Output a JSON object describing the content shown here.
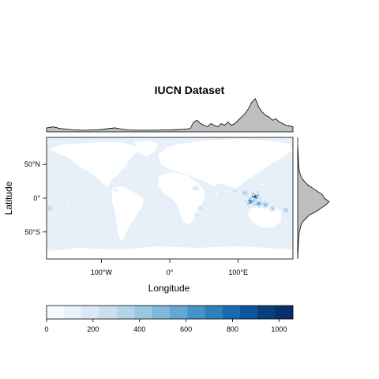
{
  "chart_data": {
    "type": "heatmap",
    "title": "IUCN Dataset",
    "xlabel": "Longitude",
    "ylabel": "Latitude",
    "xlim": [
      -180,
      180
    ],
    "ylim": [
      -90,
      90
    ],
    "x_ticks": [
      {
        "value": -100,
        "label": "100°W"
      },
      {
        "value": 0,
        "label": "0°"
      },
      {
        "value": 100,
        "label": "100°E"
      }
    ],
    "y_ticks": [
      {
        "value": 50,
        "label": "50°N"
      },
      {
        "value": 0,
        "label": "0°"
      },
      {
        "value": -50,
        "label": "50°S"
      }
    ],
    "colorbar": {
      "min": 0,
      "max": 1060,
      "tick_values": [
        0,
        200,
        400,
        600,
        800,
        1000
      ],
      "tick_labels": [
        "0",
        "200",
        "400",
        "600",
        "800",
        "1000"
      ],
      "colors": [
        "#f7fbff",
        "#e9f2fb",
        "#dbe9f6",
        "#cadef0",
        "#b5d4e9",
        "#9ac8e1",
        "#7fb9da",
        "#62a8d3",
        "#4594c7",
        "#2e80bc",
        "#1b6aaf",
        "#0c549b",
        "#083f7d",
        "#08306b"
      ]
    },
    "ocean_fill": "#e7f0f9",
    "land_fill": "#ffffff",
    "hotspots": [
      {
        "lon": 125,
        "lat": 2,
        "value": 1000
      },
      {
        "lon": 118,
        "lat": -5,
        "value": 850
      },
      {
        "lon": 130,
        "lat": -8,
        "value": 750
      },
      {
        "lon": 140,
        "lat": -10,
        "value": 600
      },
      {
        "lon": 150,
        "lat": -15,
        "value": 500
      },
      {
        "lon": 110,
        "lat": 8,
        "value": 500
      },
      {
        "lon": 95,
        "lat": 10,
        "value": 350
      },
      {
        "lon": 75,
        "lat": 5,
        "value": 300
      },
      {
        "lon": 45,
        "lat": -15,
        "value": 350
      },
      {
        "lon": 40,
        "lat": -25,
        "value": 300
      },
      {
        "lon": 38,
        "lat": 15,
        "value": 300
      },
      {
        "lon": 170,
        "lat": -18,
        "value": 500
      },
      {
        "lon": -175,
        "lat": -15,
        "value": 450
      },
      {
        "lon": -155,
        "lat": -10,
        "value": 300
      },
      {
        "lon": -80,
        "lat": 12,
        "value": 200
      },
      {
        "lon": 135,
        "lat": 25,
        "value": 250
      }
    ],
    "lon_profile": {
      "lon": [
        -180,
        -170,
        -160,
        -150,
        -140,
        -130,
        -120,
        -110,
        -100,
        -90,
        -80,
        -70,
        -60,
        -50,
        -40,
        -30,
        -20,
        -10,
        0,
        10,
        20,
        30,
        35,
        40,
        45,
        50,
        55,
        60,
        65,
        70,
        75,
        80,
        85,
        90,
        95,
        100,
        105,
        110,
        115,
        120,
        125,
        130,
        135,
        140,
        145,
        150,
        155,
        160,
        165,
        170,
        175,
        180
      ],
      "density": [
        0.12,
        0.15,
        0.1,
        0.08,
        0.06,
        0.05,
        0.05,
        0.06,
        0.07,
        0.1,
        0.12,
        0.08,
        0.06,
        0.05,
        0.05,
        0.05,
        0.05,
        0.06,
        0.06,
        0.07,
        0.08,
        0.1,
        0.3,
        0.35,
        0.25,
        0.2,
        0.15,
        0.25,
        0.2,
        0.15,
        0.25,
        0.2,
        0.3,
        0.2,
        0.25,
        0.35,
        0.45,
        0.55,
        0.7,
        0.9,
        1.0,
        0.75,
        0.6,
        0.5,
        0.45,
        0.35,
        0.4,
        0.3,
        0.25,
        0.2,
        0.18,
        0.15
      ]
    },
    "lat_profile": {
      "lat": [
        -90,
        -80,
        -70,
        -60,
        -50,
        -40,
        -35,
        -30,
        -25,
        -20,
        -15,
        -10,
        -5,
        0,
        5,
        10,
        15,
        20,
        25,
        30,
        35,
        40,
        50,
        60,
        70,
        80,
        90
      ],
      "density": [
        0.0,
        0.01,
        0.02,
        0.03,
        0.05,
        0.1,
        0.15,
        0.25,
        0.35,
        0.55,
        0.7,
        0.85,
        0.95,
        0.8,
        0.75,
        0.6,
        0.45,
        0.3,
        0.2,
        0.12,
        0.08,
        0.05,
        0.03,
        0.02,
        0.01,
        0.0,
        0.0
      ]
    }
  }
}
